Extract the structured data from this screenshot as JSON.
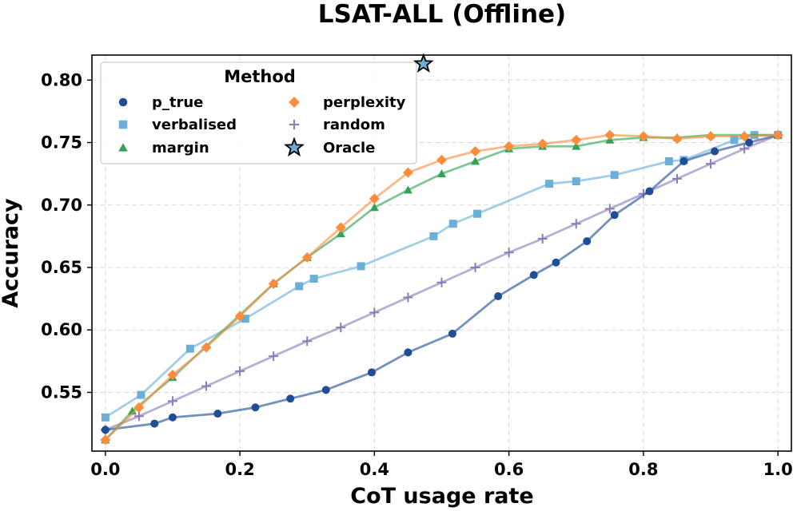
{
  "chart_data": {
    "type": "line",
    "title": "LSAT-ALL (Offline)",
    "xlabel": "CoT usage rate",
    "ylabel": "Accuracy",
    "xlim": [
      -0.02,
      1.02
    ],
    "ylim": [
      0.503,
      0.82
    ],
    "x_ticks": [
      0.0,
      0.2,
      0.4,
      0.6,
      0.8,
      1.0
    ],
    "x_tick_labels": [
      "0.0",
      "0.2",
      "0.4",
      "0.6",
      "0.8",
      "1.0"
    ],
    "y_ticks": [
      0.55,
      0.6,
      0.65,
      0.7,
      0.75,
      0.8
    ],
    "y_tick_labels": [
      "0.55",
      "0.60",
      "0.65",
      "0.70",
      "0.75",
      "0.80"
    ],
    "grid": true,
    "legend": {
      "title": "Method",
      "position": "top-left",
      "columns": 2
    },
    "series": [
      {
        "name": "p_true",
        "color": "#1f4e96",
        "marker": "circle",
        "x": [
          0.0,
          0.073,
          0.1,
          0.167,
          0.223,
          0.275,
          0.328,
          0.396,
          0.45,
          0.516,
          0.584,
          0.637,
          0.67,
          0.716,
          0.757,
          0.809,
          0.86,
          0.906,
          0.957,
          1.0
        ],
        "y": [
          0.52,
          0.525,
          0.53,
          0.533,
          0.538,
          0.545,
          0.552,
          0.566,
          0.582,
          0.597,
          0.627,
          0.644,
          0.654,
          0.671,
          0.692,
          0.711,
          0.735,
          0.743,
          0.75,
          0.756
        ]
      },
      {
        "name": "verbalised",
        "color": "#6baed6",
        "marker": "square",
        "x": [
          0.0,
          0.053,
          0.126,
          0.208,
          0.288,
          0.31,
          0.38,
          0.488,
          0.517,
          0.553,
          0.66,
          0.7,
          0.757,
          0.838,
          0.86,
          0.935,
          0.965,
          1.0
        ],
        "y": [
          0.53,
          0.548,
          0.585,
          0.609,
          0.635,
          0.641,
          0.651,
          0.675,
          0.685,
          0.693,
          0.717,
          0.719,
          0.724,
          0.735,
          0.736,
          0.752,
          0.756,
          0.756
        ]
      },
      {
        "name": "margin",
        "color": "#31a354",
        "marker": "triangle",
        "x": [
          0.0,
          0.04,
          0.1,
          0.2,
          0.25,
          0.3,
          0.35,
          0.4,
          0.45,
          0.5,
          0.55,
          0.6,
          0.65,
          0.7,
          0.75,
          0.8,
          0.85,
          0.9,
          0.95,
          1.0
        ],
        "y": [
          0.512,
          0.535,
          0.562,
          0.612,
          0.637,
          0.658,
          0.677,
          0.698,
          0.712,
          0.725,
          0.735,
          0.745,
          0.747,
          0.747,
          0.752,
          0.754,
          0.754,
          0.756,
          0.756,
          0.756
        ]
      },
      {
        "name": "perplexity",
        "color": "#fd8d3c",
        "marker": "diamond",
        "x": [
          0.0,
          0.05,
          0.1,
          0.15,
          0.2,
          0.25,
          0.3,
          0.35,
          0.4,
          0.45,
          0.5,
          0.55,
          0.6,
          0.65,
          0.7,
          0.75,
          0.8,
          0.85,
          0.9,
          0.95,
          1.0
        ],
        "y": [
          0.512,
          0.538,
          0.564,
          0.586,
          0.611,
          0.637,
          0.658,
          0.682,
          0.705,
          0.726,
          0.736,
          0.743,
          0.747,
          0.749,
          0.752,
          0.756,
          0.755,
          0.753,
          0.755,
          0.755,
          0.756
        ]
      },
      {
        "name": "random",
        "color": "#8c7bb8",
        "marker": "plus",
        "x": [
          0.0,
          0.05,
          0.1,
          0.15,
          0.2,
          0.25,
          0.3,
          0.35,
          0.4,
          0.45,
          0.5,
          0.55,
          0.6,
          0.65,
          0.7,
          0.75,
          0.8,
          0.85,
          0.9,
          0.95,
          1.0
        ],
        "y": [
          0.52,
          0.531,
          0.543,
          0.555,
          0.567,
          0.579,
          0.591,
          0.602,
          0.614,
          0.626,
          0.638,
          0.65,
          0.662,
          0.673,
          0.685,
          0.697,
          0.709,
          0.721,
          0.733,
          0.745,
          0.756
        ]
      },
      {
        "name": "Oracle",
        "color": "#6baed6",
        "marker": "star",
        "x": [
          0.473
        ],
        "y": [
          0.813
        ]
      }
    ]
  }
}
